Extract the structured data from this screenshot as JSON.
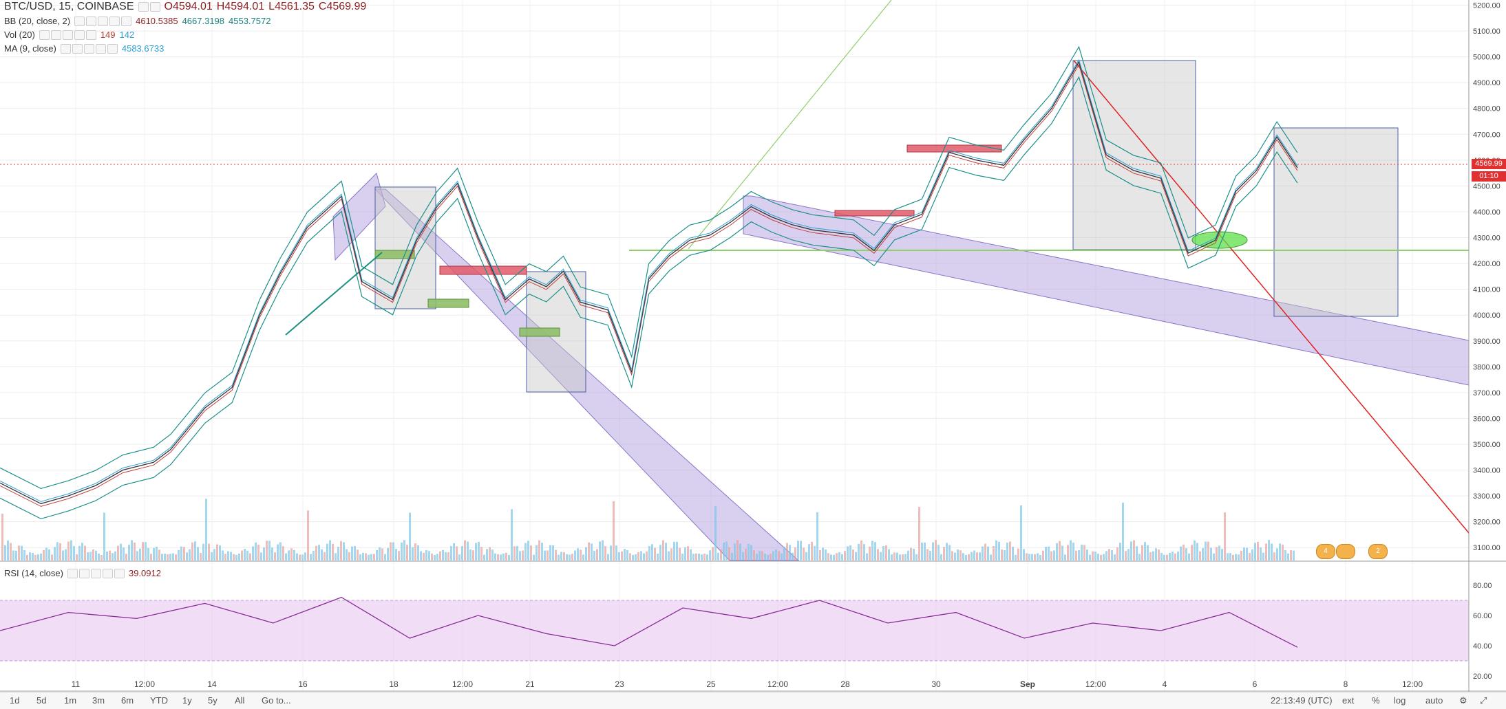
{
  "legend": {
    "symbol": "BTC/USD, 15, COINBASE",
    "open": "O4594.01",
    "high": "H4594.01",
    "low": "L4561.35",
    "close": "C4569.99",
    "bb_label": "BB (20, close, 2)",
    "bb_basis": "4610.5385",
    "bb_upper": "4667.3198",
    "bb_lower": "4553.7572",
    "vol_label": "Vol (20)",
    "vol_a": "149",
    "vol_b": "142",
    "ma_label": "MA (9, close)",
    "ma_value": "4583.6733",
    "rsi_label": "RSI (14, close)",
    "rsi_value": "39.0912"
  },
  "price_tag": {
    "price": "4569.99",
    "countdown": "01:10"
  },
  "badges": [
    "4",
    "2"
  ],
  "bottom_bar": {
    "ranges": [
      "1d",
      "5d",
      "1m",
      "3m",
      "6m",
      "YTD",
      "1y",
      "5y",
      "All",
      "Go to..."
    ],
    "time": "22:13:49 (UTC)",
    "opts": [
      "ext",
      "%",
      "log",
      "auto"
    ]
  },
  "chart_data": [
    {
      "type": "line",
      "title": "BTC/USD, 15, COINBASE",
      "x_tick_labels": [
        "11",
        "12:00",
        "14",
        "16",
        "18",
        "12:00",
        "21",
        "23",
        "25",
        "12:00",
        "28",
        "30",
        "Sep",
        "12:00",
        "4",
        "6",
        "8",
        "12:00"
      ],
      "y_ticks": [
        3100,
        3200,
        3300,
        3400,
        3500,
        3600,
        3700,
        3800,
        3900,
        4000,
        4100,
        4200,
        4300,
        4400,
        4500,
        4600,
        4700,
        4800,
        4900,
        5000,
        5100,
        5200
      ],
      "ylim": [
        3050,
        5220
      ],
      "x": [
        0,
        12,
        20,
        28,
        36,
        45,
        50,
        55,
        60,
        68,
        72,
        76,
        82,
        90,
        100,
        106,
        115,
        122,
        128,
        134,
        140,
        148,
        155,
        160,
        165,
        170,
        178,
        185,
        190,
        196,
        202,
        208,
        214,
        220,
        226,
        232,
        238,
        244,
        250,
        256,
        262,
        270,
        278,
        286,
        294,
        300,
        308,
        316,
        324,
        332,
        340,
        348,
        356,
        362,
        368,
        374,
        380
      ],
      "series": [
        {
          "name": "BTC/USD",
          "values": [
            3350,
            3270,
            3300,
            3340,
            3400,
            3430,
            3480,
            3560,
            3640,
            3720,
            3860,
            4000,
            4160,
            4340,
            4460,
            4130,
            4060,
            4290,
            4420,
            4510,
            4300,
            4060,
            4140,
            4110,
            4170,
            4050,
            4020,
            3780,
            4140,
            4230,
            4290,
            4310,
            4360,
            4420,
            4380,
            4350,
            4330,
            4320,
            4310,
            4250,
            4350,
            4390,
            4630,
            4600,
            4580,
            4680,
            4800,
            4980,
            4620,
            4560,
            4530,
            4240,
            4290,
            4480,
            4560,
            4690,
            4570
          ]
        }
      ],
      "overlays": [
        "BB (20, close, 2)",
        "MA (9, close)"
      ],
      "annotations": {
        "horizontal_line": 4230,
        "last_price": 4569.99
      }
    },
    {
      "type": "bar",
      "title": "Vol (20)",
      "note": "volume histogram along bottom of price pane"
    },
    {
      "type": "line",
      "title": "RSI (14, close)",
      "y_ticks": [
        20,
        40,
        60,
        80
      ],
      "ylim": [
        10,
        95
      ],
      "band": [
        30,
        70
      ],
      "x": [
        0,
        20,
        40,
        60,
        80,
        100,
        120,
        140,
        160,
        180,
        200,
        220,
        240,
        260,
        280,
        300,
        320,
        340,
        360,
        380
      ],
      "series": [
        {
          "name": "RSI",
          "values": [
            50,
            62,
            58,
            68,
            55,
            72,
            45,
            60,
            48,
            40,
            65,
            58,
            70,
            55,
            62,
            45,
            55,
            50,
            62,
            39
          ]
        }
      ]
    }
  ]
}
